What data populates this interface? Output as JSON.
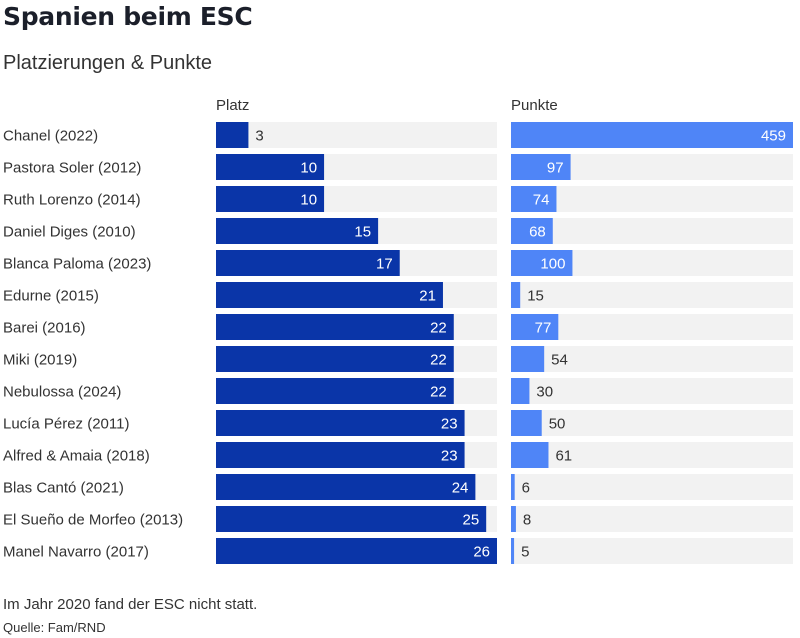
{
  "chart_data": {
    "type": "bar",
    "title": "Spanien beim ESC",
    "subtitle": "Platzierungen & Punkte",
    "categories": [
      "Chanel (2022)",
      "Pastora Soler (2012)",
      "Ruth Lorenzo (2014)",
      "Daniel Diges (2010)",
      "Blanca Paloma (2023)",
      "Edurne (2015)",
      "Barei (2016)",
      "Miki (2019)",
      "Nebulossa (2024)",
      "Lucía Pérez (2011)",
      "Alfred & Amaia (2018)",
      "Blas Cantó (2021)",
      "El Sueño de Morfeo (2013)",
      "Manel Navarro (2017)"
    ],
    "series": [
      {
        "name": "Platz",
        "color": "#0a35a8",
        "max": 26,
        "values": [
          3,
          10,
          10,
          15,
          17,
          21,
          22,
          22,
          22,
          23,
          23,
          24,
          25,
          26
        ]
      },
      {
        "name": "Punkte",
        "color": "#4f85f7",
        "max": 459,
        "values": [
          459,
          97,
          74,
          68,
          100,
          15,
          77,
          54,
          30,
          50,
          61,
          6,
          8,
          5
        ]
      }
    ],
    "track_color": "#f2f2f2",
    "grid": false,
    "legend": "none"
  },
  "footer": {
    "note": "Im Jahr 2020 fand der ESC nicht statt.",
    "source": "Quelle: Fam/RND"
  }
}
